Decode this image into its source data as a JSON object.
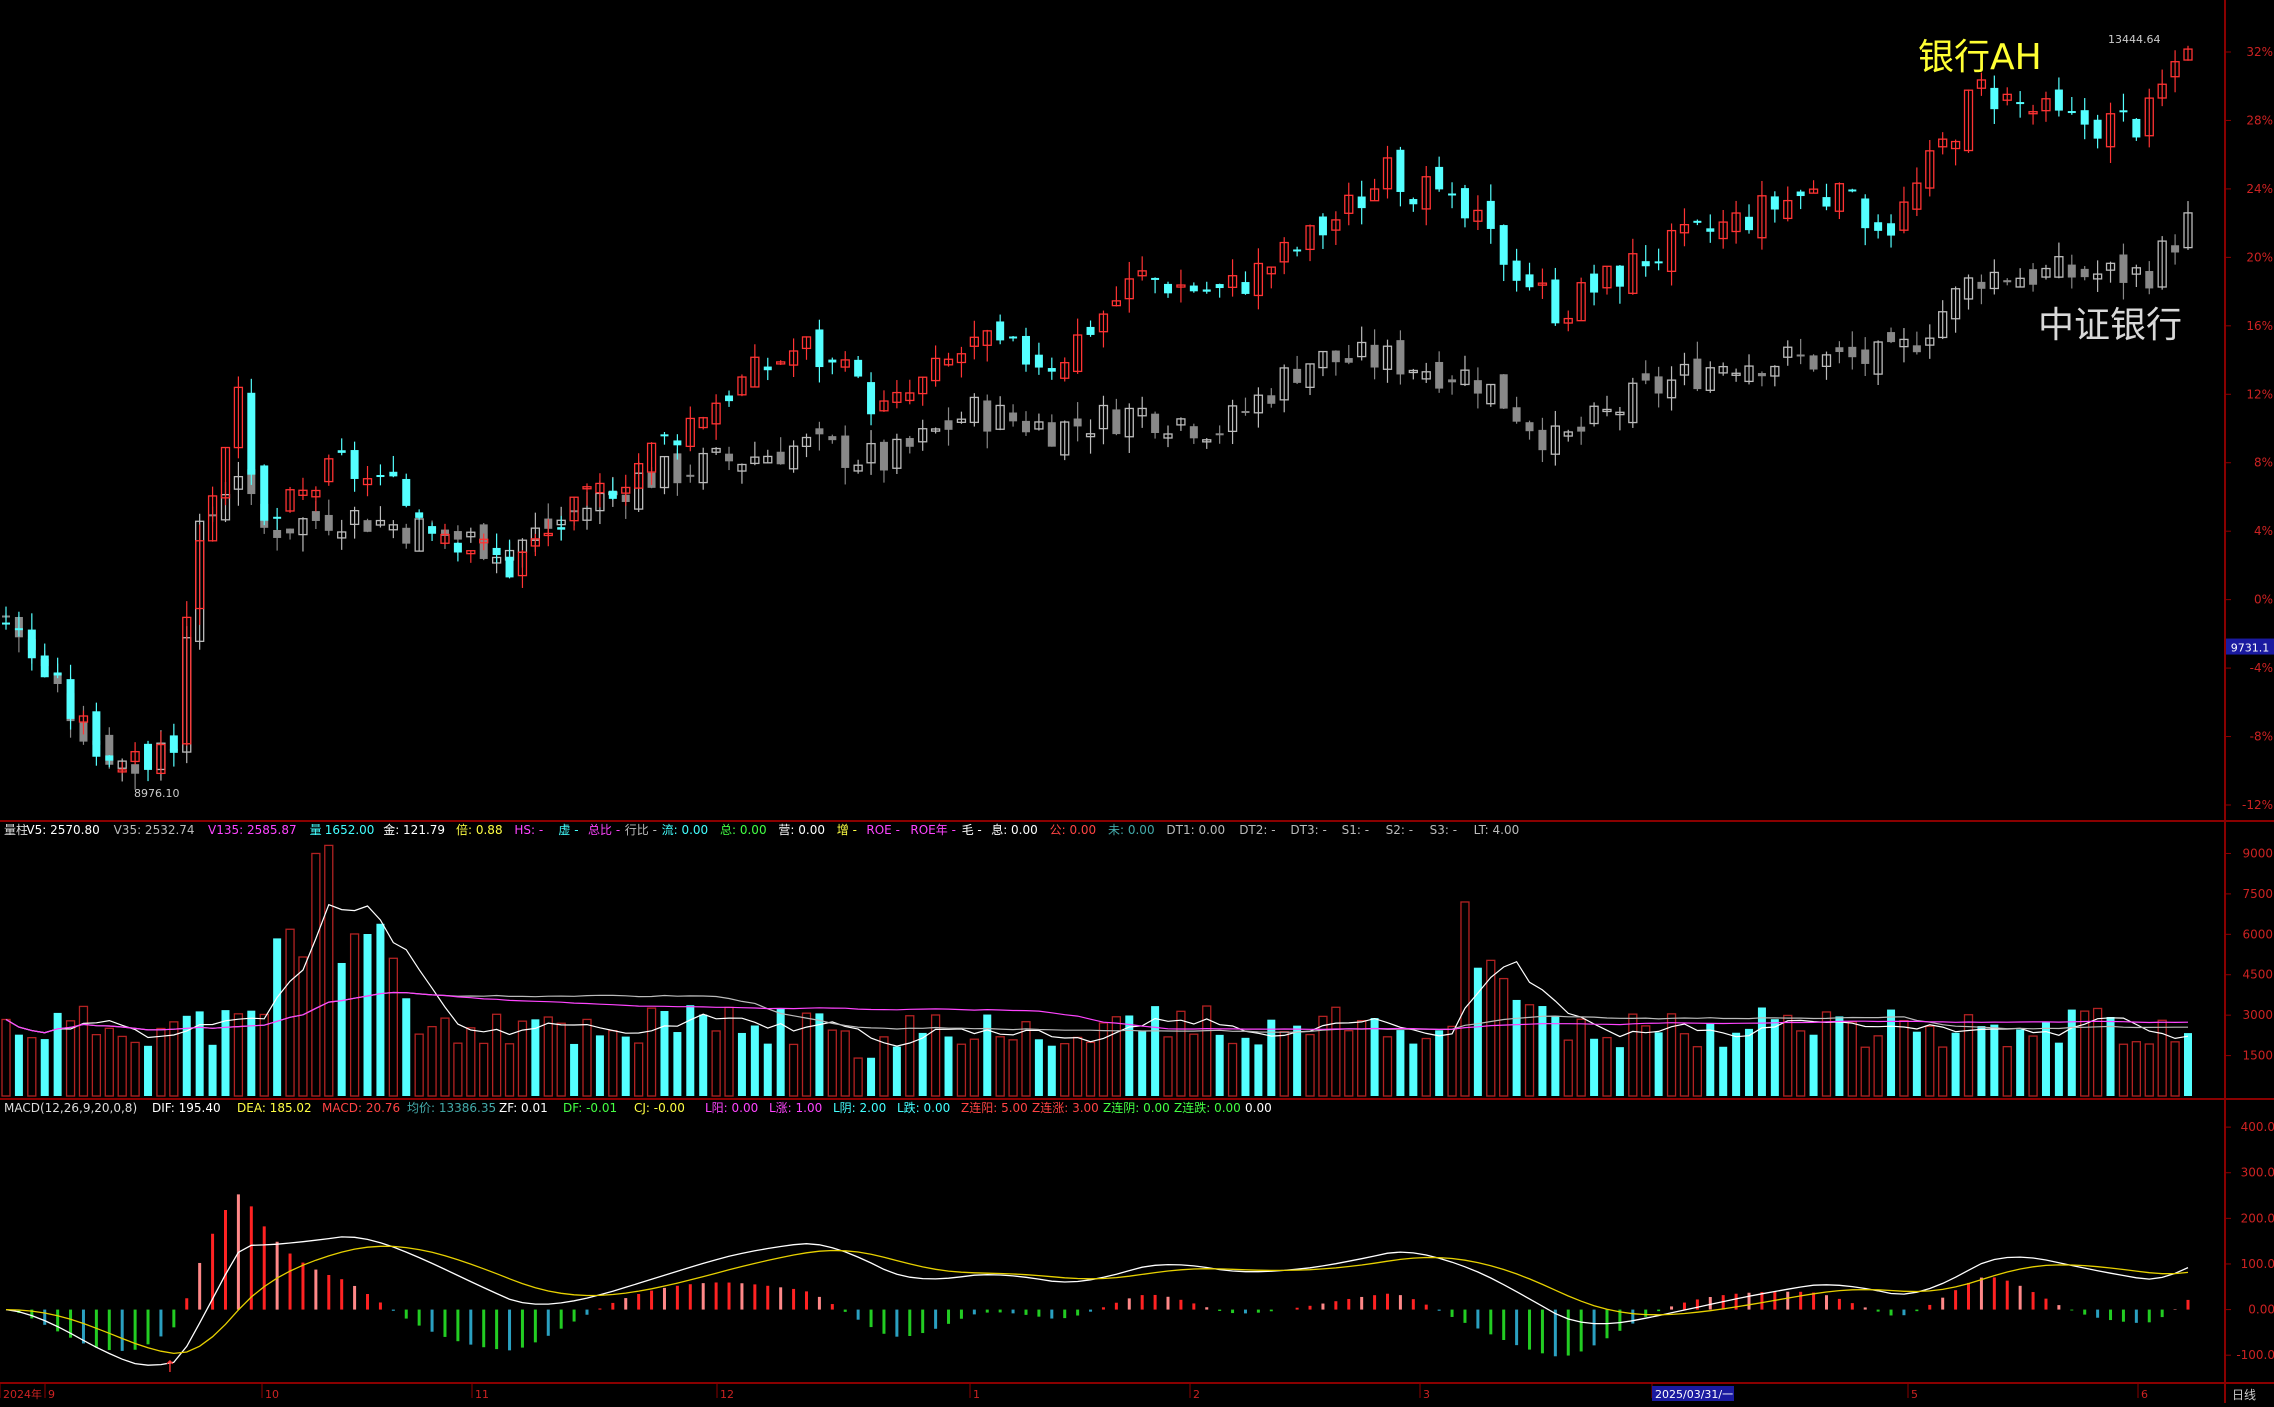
{
  "overlay": {
    "series_a": {
      "label": "银行AH",
      "color": "#ffff33"
    },
    "series_b": {
      "label": "中证银行",
      "color": "#d9d9d9"
    },
    "last_price": "13444.64",
    "low_marker": "8976.10",
    "current_value_badge": "9731.1"
  },
  "price_axis": {
    "labels": [
      "32%",
      "28%",
      "24%",
      "20%",
      "16%",
      "12%",
      "8%",
      "4%",
      "0%",
      "-4%",
      "-8%",
      "-12%"
    ]
  },
  "volume_panel": {
    "legend": [
      {
        "text": "量柱",
        "color": "#dddddd"
      },
      {
        "text": "V5: 2570.80",
        "color": "#ffffff"
      },
      {
        "text": "V35: 2532.74",
        "color": "#bbbbbb"
      },
      {
        "text": "V135: 2585.87",
        "color": "#ff44ff"
      },
      {
        "text": "量",
        "color": "#44ffff"
      },
      {
        "text": "1652.00",
        "color": "#44ffff"
      },
      {
        "text": "金: 121.79",
        "color": "#ffffff"
      },
      {
        "text": "倍: 0.88",
        "color": "#ffff44"
      },
      {
        "text": "HS: -",
        "color": "#ff44ff"
      },
      {
        "text": "虚 -",
        "color": "#44ffff"
      },
      {
        "text": "总比 -",
        "color": "#ff44ff"
      },
      {
        "text": "行比 -",
        "color": "#bbbbbb"
      },
      {
        "text": "流: 0.00",
        "color": "#44ffff"
      },
      {
        "text": "总: 0.00",
        "color": "#44ff44"
      },
      {
        "text": "营: 0.00",
        "color": "#ffffff"
      },
      {
        "text": "增 -",
        "color": "#ffff44"
      },
      {
        "text": "ROE -",
        "color": "#ff44ff"
      },
      {
        "text": "ROE年 -",
        "color": "#ff44ff"
      },
      {
        "text": "毛 -",
        "color": "#ffffff"
      },
      {
        "text": "息: 0.00",
        "color": "#ffffff"
      },
      {
        "text": "公: 0.00",
        "color": "#ff4444"
      },
      {
        "text": "未: 0.00",
        "color": "#44aaaa"
      },
      {
        "text": "DT1: 0.00",
        "color": "#bbbbbb"
      },
      {
        "text": "DT2: -",
        "color": "#bbbbbb"
      },
      {
        "text": "DT3: -",
        "color": "#bbbbbb"
      },
      {
        "text": "S1: -",
        "color": "#bbbbbb"
      },
      {
        "text": "S2: -",
        "color": "#bbbbbb"
      },
      {
        "text": "S3: -",
        "color": "#bbbbbb"
      },
      {
        "text": "LT: 4.00",
        "color": "#bbbbbb"
      }
    ],
    "axis_labels": [
      "9000",
      "7500",
      "6000",
      "4500",
      "3000",
      "1500"
    ]
  },
  "macd_panel": {
    "legend": [
      {
        "text": "MACD(12,26,9,20,0,8)",
        "color": "#dddddd"
      },
      {
        "text": "DIF: 195.40",
        "color": "#ffffff"
      },
      {
        "text": "DEA: 185.02",
        "color": "#ffff44"
      },
      {
        "text": "MACD: 20.76",
        "color": "#ff4444"
      },
      {
        "text": "均价: 13386.35",
        "color": "#44aaaa"
      },
      {
        "text": "ZF: 0.01",
        "color": "#ffffff"
      },
      {
        "text": "DF: -0.01",
        "color": "#44ff44"
      },
      {
        "text": "CJ: -0.00",
        "color": "#ffff44"
      },
      {
        "text": "L阳: 0.00",
        "color": "#ff44ff"
      },
      {
        "text": "L涨: 1.00",
        "color": "#ff44ff"
      },
      {
        "text": "L阴: 2.00",
        "color": "#44ffff"
      },
      {
        "text": "L跌: 0.00",
        "color": "#44ffff"
      },
      {
        "text": "Z连阳: 5.00",
        "color": "#ff4444"
      },
      {
        "text": "Z连涨: 3.00",
        "color": "#ff4444"
      },
      {
        "text": "Z连阴: 0.00",
        "color": "#44ff44"
      },
      {
        "text": "Z连跌: 0.00",
        "color": "#44ff44"
      },
      {
        "text": "0.00",
        "color": "#ffffff"
      }
    ],
    "axis_labels": [
      "400.0",
      "300.0",
      "200.0",
      "100.0",
      "0.00",
      "-100.0"
    ]
  },
  "time_axis": {
    "labels": [
      "2024年",
      "9",
      "10",
      "11",
      "12",
      "1",
      "2",
      "3",
      "2025/03/31/一",
      "5",
      "6"
    ],
    "period": "日线"
  },
  "colors": {
    "up": "#ff3333",
    "down": "#54ffff",
    "index": "#a6a6a6",
    "grid": "#8a0000",
    "axis_text": "#cc2222"
  },
  "chart_data": {
    "type": "candlestick",
    "scale": "percent-change",
    "series": [
      {
        "name": "银行AH",
        "pct_change_points": [
          [
            2024.66,
            -1
          ],
          [
            2024.7,
            -8
          ],
          [
            2024.72,
            -10
          ],
          [
            2024.74,
            -8
          ],
          [
            2024.75,
            3
          ],
          [
            2024.77,
            12
          ],
          [
            2024.78,
            4
          ],
          [
            2024.82,
            8
          ],
          [
            2024.86,
            5
          ],
          [
            2024.9,
            2
          ],
          [
            2024.93,
            5
          ],
          [
            2024.96,
            8
          ],
          [
            2025.0,
            12
          ],
          [
            2025.04,
            15
          ],
          [
            2025.08,
            11
          ],
          [
            2025.12,
            15
          ],
          [
            2025.16,
            14
          ],
          [
            2025.2,
            19
          ],
          [
            2025.24,
            18
          ],
          [
            2025.28,
            21
          ],
          [
            2025.32,
            25
          ],
          [
            2025.36,
            22
          ],
          [
            2025.4,
            17
          ],
          [
            2025.44,
            20
          ],
          [
            2025.48,
            22
          ],
          [
            2025.52,
            24
          ],
          [
            2025.56,
            22
          ],
          [
            2025.6,
            30
          ],
          [
            2025.64,
            28
          ],
          [
            2025.68,
            28
          ],
          [
            2025.7,
            33
          ]
        ]
      },
      {
        "name": "中证银行",
        "pct_change_points": [
          [
            2024.66,
            -1
          ],
          [
            2024.7,
            -8
          ],
          [
            2024.72,
            -10
          ],
          [
            2024.74,
            -8
          ],
          [
            2024.75,
            3
          ],
          [
            2024.77,
            8
          ],
          [
            2024.78,
            4
          ],
          [
            2024.82,
            5
          ],
          [
            2024.86,
            4
          ],
          [
            2024.9,
            3
          ],
          [
            2024.93,
            5
          ],
          [
            2024.96,
            7
          ],
          [
            2025.0,
            8
          ],
          [
            2025.04,
            9
          ],
          [
            2025.08,
            8
          ],
          [
            2025.12,
            11
          ],
          [
            2025.16,
            10
          ],
          [
            2025.2,
            11
          ],
          [
            2025.24,
            10
          ],
          [
            2025.28,
            14
          ],
          [
            2025.32,
            14
          ],
          [
            2025.36,
            13
          ],
          [
            2025.4,
            9
          ],
          [
            2025.44,
            12
          ],
          [
            2025.48,
            14
          ],
          [
            2025.52,
            14
          ],
          [
            2025.56,
            14
          ],
          [
            2025.6,
            19
          ],
          [
            2025.64,
            19
          ],
          [
            2025.68,
            19
          ],
          [
            2025.7,
            22
          ]
        ]
      }
    ],
    "ylim_pct": [
      -12,
      33
    ],
    "volume_ylim": [
      0,
      9500
    ],
    "macd_ylim": [
      -150,
      420
    ]
  }
}
